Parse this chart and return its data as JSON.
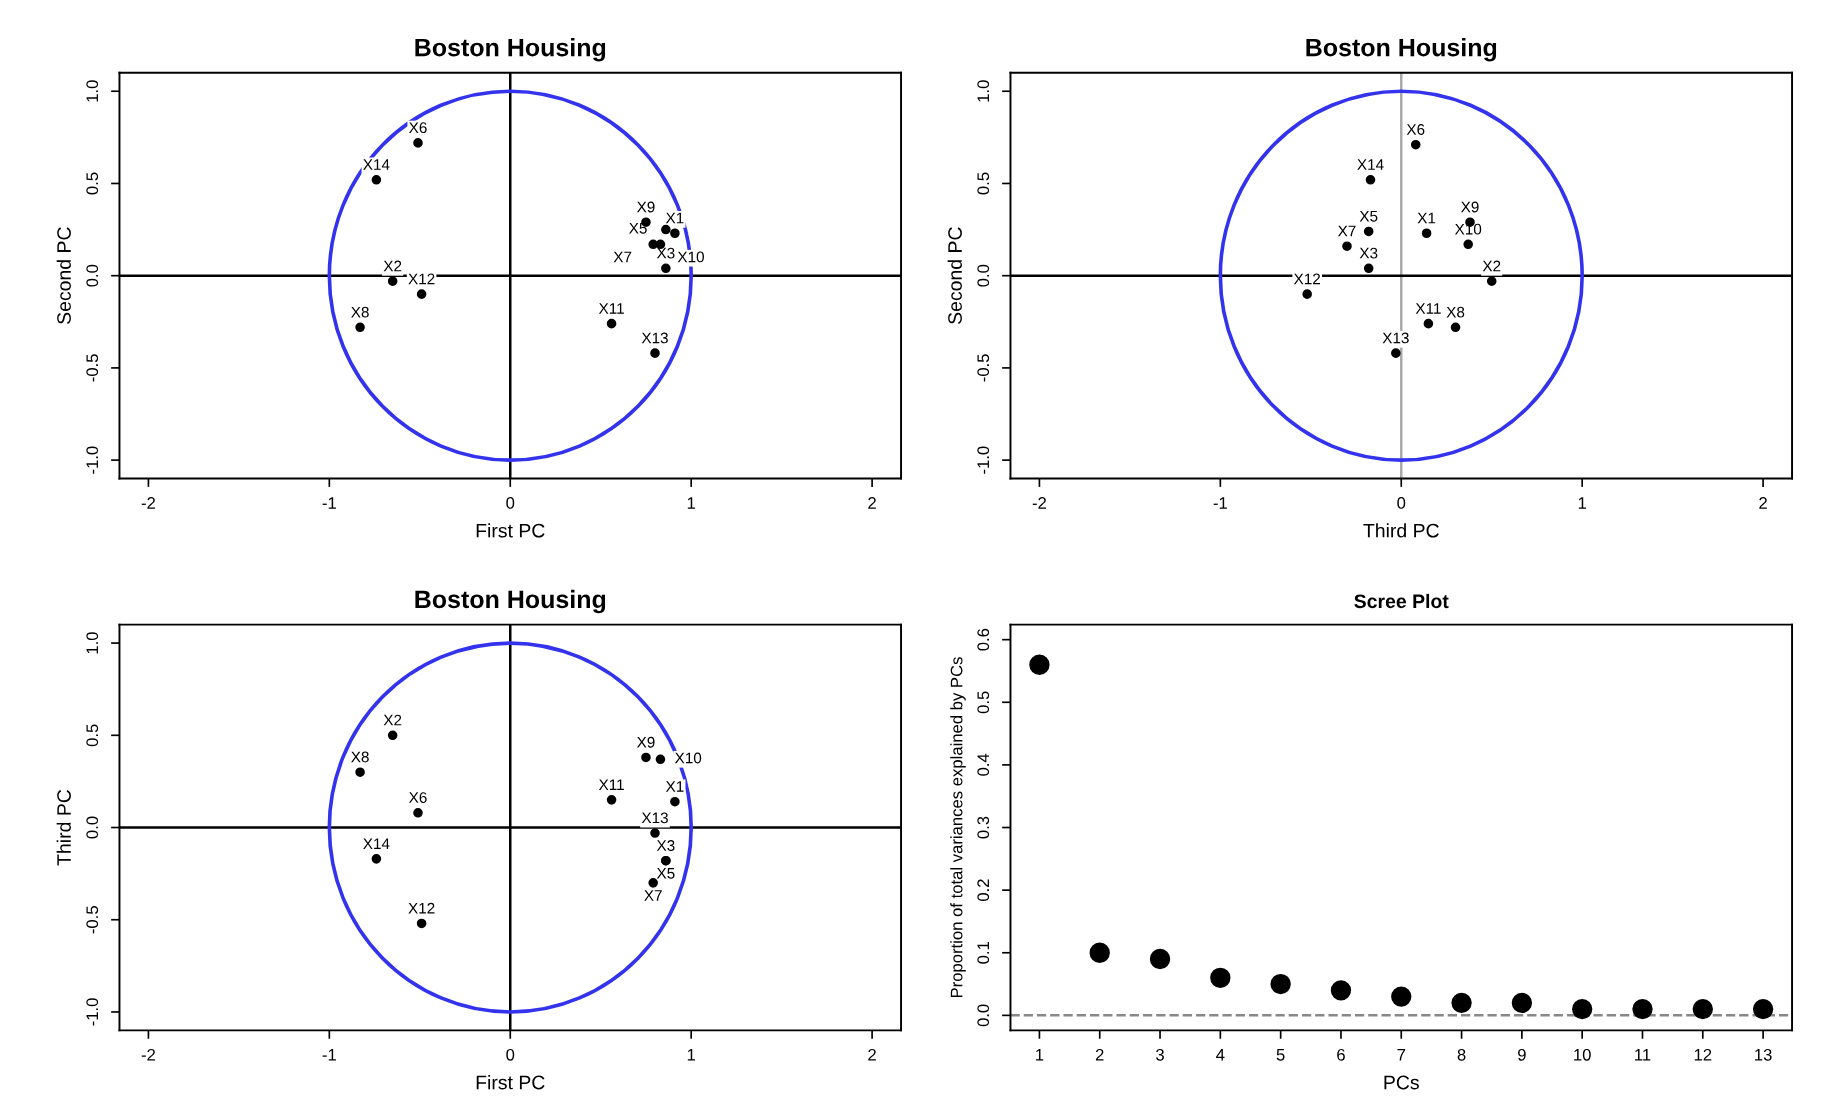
{
  "chart_data": [
    {
      "type": "scatter",
      "title": "Boston Housing",
      "xlabel": "First PC",
      "ylabel": "Second PC",
      "xlim": [
        -2.16,
        2.16
      ],
      "ylim": [
        -1.1,
        1.1
      ],
      "xticks": [
        -2,
        -1,
        0,
        1,
        2
      ],
      "yticks": [
        {
          "value": -1,
          "label": "-1.0"
        },
        -0.5,
        {
          "value": 0,
          "label": "0.0"
        },
        0.5,
        {
          "value": 1,
          "label": "1.0"
        }
      ],
      "grid": false,
      "marker": "circle",
      "ref_lines": [
        {
          "axis": "x",
          "value": 0,
          "color": "#000000"
        },
        {
          "axis": "y",
          "value": 0,
          "color": "#000000"
        }
      ],
      "series": [
        {
          "color": "#000000",
          "x": [
            0.91,
            -0.65,
            0.86,
            0.86,
            -0.51,
            0.79,
            -0.83,
            0.75,
            0.83,
            0.56,
            -0.49,
            0.8,
            -0.74
          ],
          "values": [
            0.23,
            -0.03,
            0.04,
            0.25,
            0.72,
            0.17,
            -0.28,
            0.29,
            0.17,
            -0.26,
            -0.1,
            -0.42,
            0.52
          ],
          "value_labels": [
            "X1",
            "X2",
            "X3",
            "X5",
            "X6",
            "X7",
            "X8",
            "X9",
            "X10",
            "X11",
            "X12",
            "X13",
            "X14"
          ]
        }
      ]
    },
    {
      "type": "scatter",
      "title": "Boston Housing",
      "xlabel": "Third PC",
      "ylabel": "Second PC",
      "xlim": [
        -2.16,
        2.16
      ],
      "ylim": [
        -1.1,
        1.1
      ],
      "xticks": [
        -2,
        -1,
        0,
        1,
        2
      ],
      "yticks": [
        {
          "value": -1,
          "label": "-1.0"
        },
        -0.5,
        {
          "value": 0,
          "label": "0.0"
        },
        0.5,
        {
          "value": 1,
          "label": "1.0"
        }
      ],
      "grid": false,
      "marker": "circle",
      "ref_lines": [
        {
          "axis": "x",
          "value": 0,
          "color": "#aaaaaa"
        },
        {
          "axis": "y",
          "value": 0,
          "color": "#000000"
        }
      ],
      "series": [
        {
          "color": "#000000",
          "x": [
            0.14,
            0.5,
            -0.18,
            -0.18,
            0.08,
            -0.3,
            0.3,
            0.38,
            0.37,
            0.15,
            -0.52,
            -0.03,
            -0.17
          ],
          "values": [
            0.23,
            -0.03,
            0.04,
            0.24,
            0.71,
            0.16,
            -0.28,
            0.29,
            0.17,
            -0.26,
            -0.1,
            -0.42,
            0.52
          ],
          "value_labels": [
            "X1",
            "X2",
            "X3",
            "X5",
            "X6",
            "X7",
            "X8",
            "X9",
            "X10",
            "X11",
            "X12",
            "X13",
            "X14"
          ]
        }
      ]
    },
    {
      "type": "scatter",
      "title": "Boston Housing",
      "xlabel": "First PC",
      "ylabel": "Third PC",
      "xlim": [
        -2.16,
        2.16
      ],
      "ylim": [
        -1.1,
        1.1
      ],
      "xticks": [
        -2,
        -1,
        0,
        1,
        2
      ],
      "yticks": [
        {
          "value": -1,
          "label": "-1.0"
        },
        -0.5,
        {
          "value": 0,
          "label": "0.0"
        },
        0.5,
        {
          "value": 1,
          "label": "1.0"
        }
      ],
      "grid": false,
      "marker": "circle",
      "ref_lines": [
        {
          "axis": "x",
          "value": 0,
          "color": "#000000"
        },
        {
          "axis": "y",
          "value": 0,
          "color": "#000000"
        }
      ],
      "series": [
        {
          "color": "#000000",
          "x": [
            0.91,
            -0.65,
            0.86,
            0.86,
            -0.51,
            0.79,
            -0.83,
            0.75,
            0.83,
            0.56,
            -0.49,
            0.8,
            -0.74
          ],
          "values": [
            0.14,
            0.5,
            -0.18,
            -0.18,
            0.08,
            -0.3,
            0.3,
            0.38,
            0.37,
            0.15,
            -0.52,
            -0.03,
            -0.17
          ],
          "value_labels": [
            "X1",
            "X2",
            "X3",
            "X5",
            "X6",
            "X7",
            "X8",
            "X9",
            "X10",
            "X11",
            "X12",
            "X13",
            "X14"
          ]
        }
      ]
    },
    {
      "type": "scatter",
      "title": "Scree Plot",
      "xlabel": "PCs",
      "ylabel": "Proportion of total variances explained by PCs",
      "xlim": [
        0.52,
        13.48
      ],
      "ylim": [
        -0.024,
        0.624
      ],
      "xticks": [
        1,
        2,
        3,
        4,
        5,
        6,
        7,
        8,
        9,
        10,
        11,
        12,
        13
      ],
      "yticks": [
        {
          "value": 0,
          "label": "0.0"
        },
        0.1,
        0.2,
        0.3,
        0.4,
        0.5,
        0.6
      ],
      "grid": false,
      "marker": "circle",
      "ref_lines": [
        {
          "axis": "y",
          "value": 0,
          "color": "#888888",
          "line_style": "dashed"
        }
      ],
      "series": [
        {
          "color": "#000000",
          "x": [
            1,
            2,
            3,
            4,
            5,
            6,
            7,
            8,
            9,
            10,
            11,
            12,
            13
          ],
          "values": [
            0.56,
            0.1,
            0.09,
            0.06,
            0.05,
            0.04,
            0.03,
            0.02,
            0.02,
            0.01,
            0.01,
            0.01,
            0.01
          ]
        }
      ]
    }
  ]
}
